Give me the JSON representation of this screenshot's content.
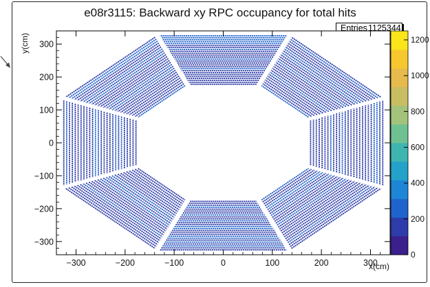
{
  "chart_data": {
    "type": "heatmap",
    "title": "e08r3115: Backward xy RPC occupancy for total hits",
    "xlabel": "x(cm)",
    "ylabel": "y(cm)",
    "xlim": [
      -340,
      340
    ],
    "ylim": [
      -340,
      340
    ],
    "x_ticks": [
      -300,
      -200,
      -100,
      0,
      100,
      200,
      300
    ],
    "y_ticks": [
      -300,
      -200,
      -100,
      0,
      100,
      200,
      300
    ],
    "x_tick_labels": [
      "−300",
      "−200",
      "−100",
      "0",
      "100",
      "200",
      "300"
    ],
    "y_tick_labels": [
      "−300",
      "−200",
      "−100",
      "0",
      "100",
      "200",
      "300"
    ],
    "stats": {
      "label": "Entries",
      "value": "1125344"
    },
    "z_range": [
      0,
      1250
    ],
    "z_ticks": [
      0,
      200,
      400,
      600,
      800,
      1000,
      1200
    ],
    "colorbar_palette": [
      "#3b1f8c",
      "#2d3ca8",
      "#1f63cc",
      "#1d86d6",
      "#24a2c9",
      "#3fb5b0",
      "#6fc192",
      "#a3c37a",
      "#c9bd62",
      "#e6ba4d",
      "#f6c72f",
      "#f9e51a"
    ],
    "octant_inner_radius": 130,
    "octant_outer_radius": 340,
    "octant_inner_apothem": 175,
    "octant_outer_apothem": 328,
    "typical_value": 200,
    "grid": false,
    "legend": "none"
  }
}
